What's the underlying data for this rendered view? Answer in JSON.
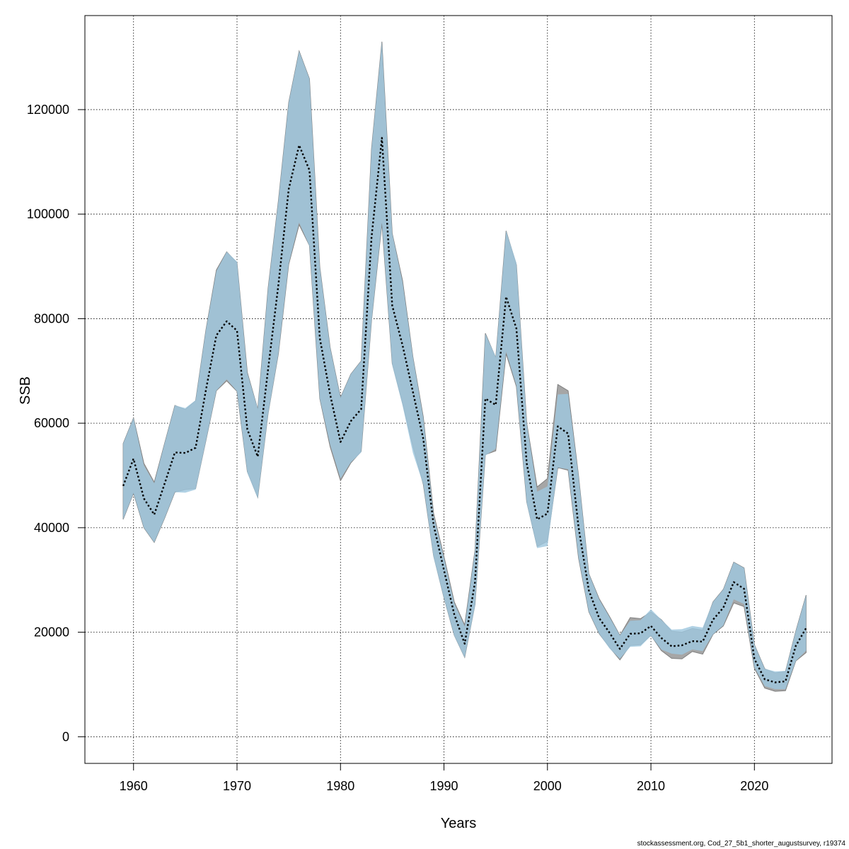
{
  "chart_data": {
    "type": "area",
    "title": "",
    "xlabel": "Years",
    "ylabel": "SSB",
    "footnote": "stockassessment.org, Cod_27_5b1_shorter_augustsurvey, r19374",
    "xlim": [
      1955.3,
      2027.5
    ],
    "ylim": [
      -5100,
      138000
    ],
    "x_ticks": [
      1960,
      1970,
      1980,
      1990,
      2000,
      2010,
      2020
    ],
    "y_ticks": [
      0,
      20000,
      40000,
      60000,
      80000,
      100000,
      120000
    ],
    "grid": true,
    "colors": {
      "band_grey": "#a6a6a6",
      "band_blue": "#9fc7de",
      "band_edge": "#7f7f7f",
      "line": "#000000"
    },
    "series": [
      {
        "name": "SSB estimate",
        "style": "dotted line",
        "x": [
          1959,
          1960,
          1961,
          1962,
          1963,
          1964,
          1965,
          1966,
          1967,
          1968,
          1969,
          1970,
          1971,
          1972,
          1973,
          1974,
          1975,
          1976,
          1977,
          1978,
          1979,
          1980,
          1981,
          1982,
          1983,
          1984,
          1985,
          1986,
          1987,
          1988,
          1989,
          1990,
          1991,
          1992,
          1993,
          1994,
          1995,
          1996,
          1997,
          1998,
          1999,
          2000,
          2001,
          2002,
          2003,
          2004,
          2005,
          2006,
          2007,
          2008,
          2009,
          2010,
          2011,
          2012,
          2013,
          2014,
          2015,
          2016,
          2017,
          2018,
          2019,
          2020,
          2021,
          2022,
          2023,
          2024,
          2025
        ],
        "values": [
          48000,
          53200,
          45600,
          42500,
          48400,
          54400,
          54300,
          55300,
          66400,
          76800,
          79500,
          77700,
          58800,
          53600,
          70300,
          86500,
          104800,
          113200,
          108400,
          76300,
          65500,
          56400,
          60400,
          62700,
          95500,
          114600,
          82500,
          74900,
          66000,
          57000,
          40500,
          31900,
          23400,
          17800,
          29600,
          64700,
          63500,
          84200,
          78100,
          52300,
          41600,
          42700,
          59400,
          58000,
          40100,
          28000,
          22700,
          19900,
          16800,
          19700,
          19800,
          21200,
          18900,
          17300,
          17500,
          18300,
          18200,
          22400,
          24700,
          29600,
          28300,
          14900,
          11000,
          10400,
          10600,
          17400,
          20800
        ]
      },
      {
        "name": "Confidence band (grey)",
        "lower": [
          41600,
          46600,
          40000,
          37200,
          41800,
          46800,
          47300,
          47500,
          56700,
          66200,
          68100,
          66100,
          50700,
          45800,
          61800,
          73300,
          90400,
          98000,
          94000,
          64700,
          55500,
          49000,
          52400,
          54600,
          79600,
          98200,
          71400,
          63800,
          55600,
          48300,
          34600,
          26600,
          19400,
          15200,
          25300,
          54000,
          54700,
          73300,
          67000,
          44900,
          36400,
          37400,
          51500,
          51000,
          34200,
          23900,
          19700,
          17100,
          14700,
          17500,
          17600,
          19400,
          16500,
          15000,
          14900,
          16300,
          15800,
          19600,
          21200,
          25600,
          24900,
          13100,
          9300,
          8700,
          8800,
          14500,
          16100
        ],
        "upper": [
          56100,
          61000,
          52300,
          48700,
          56100,
          63400,
          62600,
          64300,
          77900,
          89300,
          92800,
          90700,
          69700,
          62700,
          85800,
          102600,
          121400,
          131200,
          125900,
          89900,
          74500,
          64900,
          69400,
          71900,
          112500,
          133000,
          96300,
          87300,
          72700,
          61200,
          42700,
          34500,
          25800,
          21400,
          35700,
          77200,
          72500,
          96800,
          90300,
          60000,
          47800,
          49400,
          67400,
          66200,
          50000,
          31200,
          26400,
          23000,
          19400,
          22800,
          22600,
          23900,
          22400,
          20200,
          20000,
          20700,
          20400,
          25800,
          28200,
          33400,
          32300,
          17600,
          13000,
          12200,
          12500,
          20200,
          27100
        ]
      },
      {
        "name": "Confidence band (blue)",
        "lower": [
          41600,
          46600,
          40000,
          37200,
          41800,
          46800,
          46700,
          47300,
          56600,
          66200,
          68400,
          66100,
          50500,
          45600,
          61600,
          73300,
          90500,
          98400,
          93900,
          64700,
          55900,
          49400,
          52500,
          54400,
          79400,
          98400,
          71100,
          63400,
          54300,
          48300,
          34300,
          26500,
          19300,
          15100,
          25000,
          53800,
          55100,
          73700,
          67200,
          44700,
          36100,
          36500,
          51500,
          51200,
          34300,
          23900,
          19700,
          16900,
          14900,
          17200,
          17300,
          19300,
          16700,
          15900,
          15700,
          16700,
          16400,
          19600,
          21300,
          26300,
          25400,
          13300,
          9700,
          9100,
          9100,
          14500,
          16500
        ],
        "upper": [
          56100,
          61000,
          51900,
          48500,
          56100,
          63400,
          62900,
          64400,
          77900,
          89100,
          92800,
          90900,
          69600,
          62800,
          85800,
          102600,
          121400,
          131200,
          125900,
          89900,
          74500,
          64900,
          69400,
          71900,
          112500,
          133000,
          96300,
          87000,
          72700,
          61000,
          42300,
          34200,
          25500,
          21100,
          35600,
          77100,
          72700,
          96800,
          90700,
          60000,
          46900,
          47900,
          65500,
          65600,
          50000,
          31200,
          26300,
          22900,
          19400,
          22200,
          22300,
          24400,
          22400,
          20500,
          20600,
          21200,
          20900,
          25800,
          28200,
          33400,
          32300,
          17600,
          13000,
          12500,
          12600,
          20200,
          27100
        ]
      }
    ]
  }
}
